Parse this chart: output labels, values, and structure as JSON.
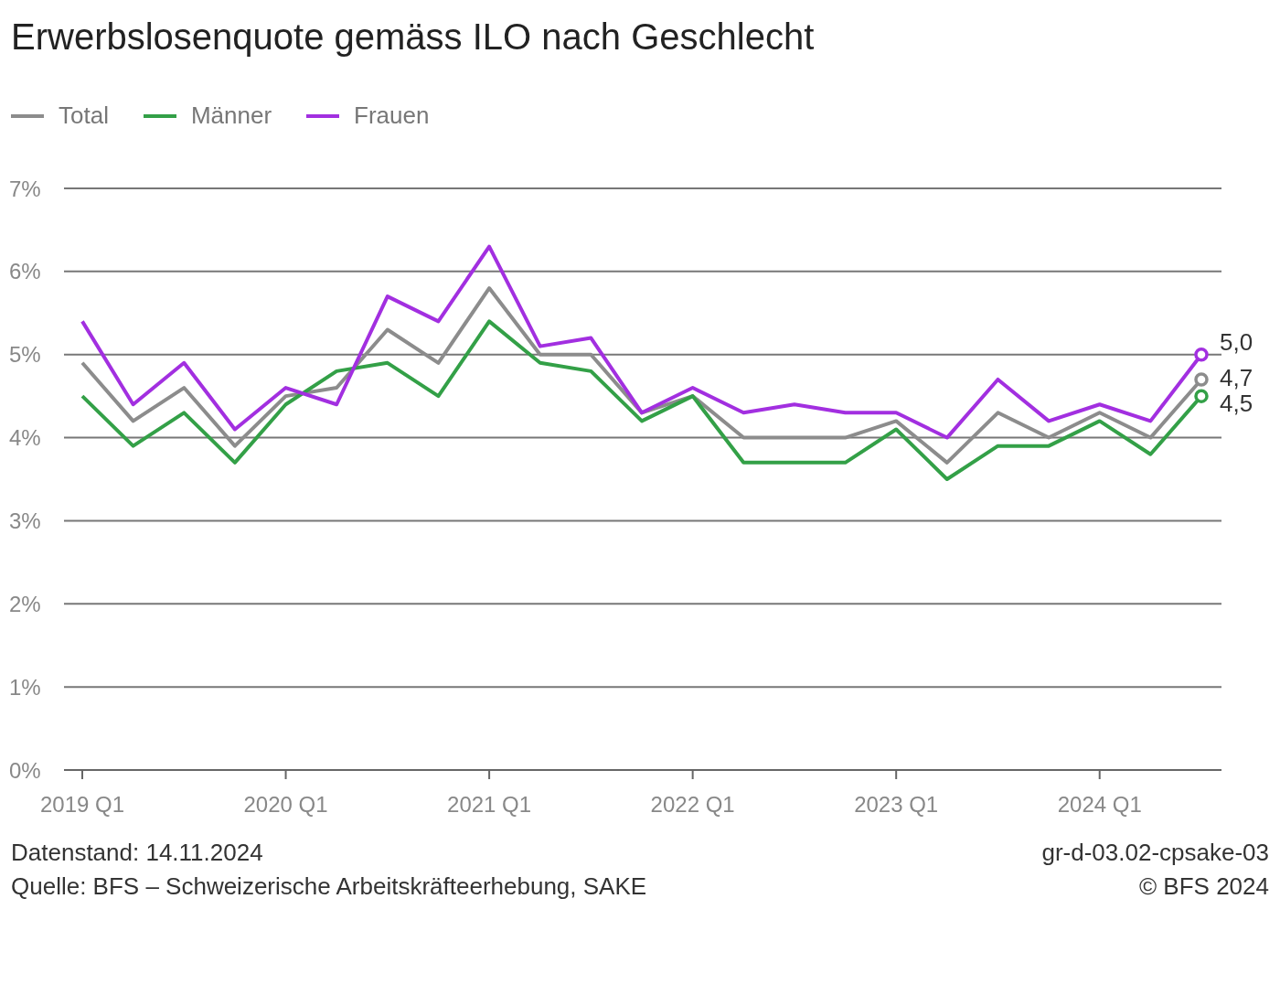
{
  "chart_data": {
    "type": "line",
    "title": "Erwerbslosenquote gemäss ILO nach Geschlecht",
    "categories": [
      "2019 Q1",
      null,
      null,
      null,
      "2020 Q1",
      null,
      null,
      null,
      "2021 Q1",
      null,
      null,
      null,
      "2022 Q1",
      null,
      null,
      null,
      "2023 Q1",
      null,
      null,
      null,
      "2024 Q1",
      null,
      null
    ],
    "series": [
      {
        "name": "Total",
        "color": "#8c8c8c",
        "values": [
          4.9,
          4.2,
          4.6,
          3.9,
          4.5,
          4.6,
          5.3,
          4.9,
          5.8,
          5.0,
          5.0,
          4.3,
          4.5,
          4.0,
          4.0,
          4.0,
          4.2,
          3.7,
          4.3,
          4.0,
          4.3,
          4.0,
          4.7
        ],
        "value_labels": [
          null,
          null,
          null,
          null,
          null,
          null,
          null,
          null,
          null,
          null,
          null,
          null,
          null,
          null,
          null,
          null,
          null,
          null,
          null,
          null,
          null,
          null,
          "4,7"
        ]
      },
      {
        "name": "Männer",
        "color": "#33a047",
        "values": [
          4.5,
          3.9,
          4.3,
          3.7,
          4.4,
          4.8,
          4.9,
          4.5,
          5.4,
          4.9,
          4.8,
          4.2,
          4.5,
          3.7,
          3.7,
          3.7,
          4.1,
          3.5,
          3.9,
          3.9,
          4.2,
          3.8,
          4.5
        ],
        "value_labels": [
          null,
          null,
          null,
          null,
          null,
          null,
          null,
          null,
          null,
          null,
          null,
          null,
          null,
          null,
          null,
          null,
          null,
          null,
          null,
          null,
          null,
          null,
          "4,5"
        ]
      },
      {
        "name": "Frauen",
        "color": "#a22fe0",
        "values": [
          5.4,
          4.4,
          4.9,
          4.1,
          4.6,
          4.4,
          5.7,
          5.4,
          6.3,
          5.1,
          5.2,
          4.3,
          4.6,
          4.3,
          4.4,
          4.3,
          4.3,
          4.0,
          4.7,
          4.2,
          4.4,
          4.2,
          5.0
        ],
        "value_labels": [
          null,
          null,
          null,
          null,
          null,
          null,
          null,
          null,
          null,
          null,
          null,
          null,
          null,
          null,
          null,
          null,
          null,
          null,
          null,
          null,
          null,
          null,
          "5,0"
        ]
      }
    ],
    "ylim": [
      0,
      7
    ],
    "yticks": [
      {
        "value": 0,
        "label": "0%"
      },
      {
        "value": 1,
        "label": "1%"
      },
      {
        "value": 2,
        "label": "2%"
      },
      {
        "value": 3,
        "label": "3%"
      },
      {
        "value": 4,
        "label": "4%"
      },
      {
        "value": 5,
        "label": "5%"
      },
      {
        "value": 6,
        "label": "6%"
      },
      {
        "value": 7,
        "label": "7%"
      }
    ],
    "grid": "y",
    "legend": "top left",
    "line_style": "solid",
    "annotations": [
      "Datenstand: 14.11.2024",
      "Quelle: BFS – Schweizerische Arbeitskräfteerhebung, SAKE",
      "gr-d-03.02-cpsake-03",
      "© BFS 2024"
    ]
  }
}
